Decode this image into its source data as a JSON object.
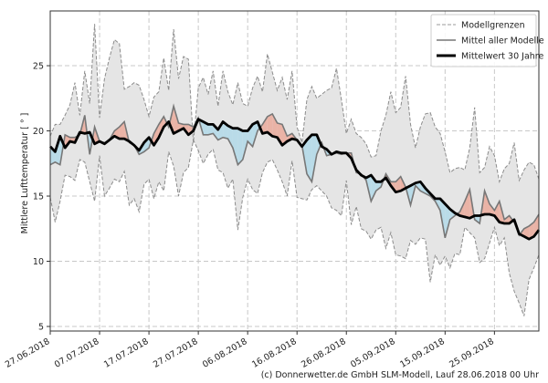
{
  "chart_data": {
    "type": "area",
    "title": "",
    "xlabel": "",
    "ylabel": "Mittlere Lufttemperatur [ ° ]",
    "ylim": [
      4.65,
      29.2
    ],
    "yticks": [
      5,
      10,
      15,
      20,
      25
    ],
    "xticks": [
      "27.06.2018",
      "07.07.2018",
      "17.07.2018",
      "27.07.2018",
      "06.08.2018",
      "16.08.2018",
      "26.08.2018",
      "05.09.2018",
      "15.09.2018",
      "25.09.2018"
    ],
    "grid": true,
    "legend_position": "top-right",
    "x": [
      "27.06.2018",
      "28.06.2018",
      "29.06.2018",
      "30.06.2018",
      "01.07.2018",
      "02.07.2018",
      "03.07.2018",
      "04.07.2018",
      "05.07.2018",
      "06.07.2018",
      "07.07.2018",
      "08.07.2018",
      "09.07.2018",
      "10.07.2018",
      "11.07.2018",
      "12.07.2018",
      "13.07.2018",
      "14.07.2018",
      "15.07.2018",
      "16.07.2018",
      "17.07.2018",
      "18.07.2018",
      "19.07.2018",
      "20.07.2018",
      "21.07.2018",
      "22.07.2018",
      "23.07.2018",
      "24.07.2018",
      "25.07.2018",
      "26.07.2018",
      "27.07.2018",
      "28.07.2018",
      "29.07.2018",
      "30.07.2018",
      "31.07.2018",
      "01.08.2018",
      "02.08.2018",
      "03.08.2018",
      "04.08.2018",
      "05.08.2018",
      "06.08.2018",
      "07.08.2018",
      "08.08.2018",
      "09.08.2018",
      "10.08.2018",
      "11.08.2018",
      "12.08.2018",
      "13.08.2018",
      "14.08.2018",
      "15.08.2018",
      "16.08.2018",
      "17.08.2018",
      "18.08.2018",
      "19.08.2018",
      "20.08.2018",
      "21.08.2018",
      "22.08.2018",
      "23.08.2018",
      "24.08.2018",
      "25.08.2018",
      "26.08.2018",
      "27.08.2018",
      "28.08.2018",
      "29.08.2018",
      "30.08.2018",
      "31.08.2018",
      "01.09.2018",
      "02.09.2018",
      "03.09.2018",
      "04.09.2018",
      "05.09.2018",
      "06.09.2018",
      "07.09.2018",
      "08.09.2018",
      "09.09.2018",
      "10.09.2018",
      "11.09.2018",
      "12.09.2018",
      "13.09.2018",
      "14.09.2018",
      "15.09.2018",
      "16.09.2018",
      "17.09.2018",
      "18.09.2018",
      "19.09.2018",
      "20.09.2018",
      "21.09.2018",
      "22.09.2018",
      "23.09.2018",
      "24.09.2018",
      "25.09.2018",
      "26.09.2018",
      "27.09.2018",
      "28.09.2018",
      "29.09.2018",
      "30.09.2018",
      "01.10.2018",
      "02.10.2018",
      "03.10.2018",
      "04.10.2018"
    ],
    "series": [
      {
        "name": "Modellgrenzen",
        "role": "upper",
        "color": "#8c8c8c",
        "style": "dashed",
        "values": [
          19.6,
          20.5,
          20.5,
          21.2,
          22.0,
          23.7,
          21.2,
          24.6,
          22.1,
          28.2,
          21.0,
          24.0,
          25.6,
          27.0,
          26.7,
          23.2,
          23.4,
          23.7,
          23.5,
          22.4,
          21.1,
          22.6,
          23.0,
          25.6,
          23.1,
          27.8,
          24.0,
          25.7,
          25.5,
          19.1,
          23.3,
          24.1,
          22.8,
          24.6,
          21.9,
          24.6,
          23.0,
          22.0,
          23.7,
          22.1,
          21.9,
          23.3,
          24.2,
          23.0,
          25.9,
          24.5,
          23.1,
          24.1,
          22.4,
          24.6,
          20.3,
          19.1,
          22.4,
          23.4,
          22.5,
          22.8,
          23.1,
          23.3,
          24.8,
          22.4,
          19.8,
          20.9,
          19.8,
          19.5,
          19.0,
          18.0,
          18.1,
          20.0,
          21.2,
          23.0,
          21.4,
          21.8,
          24.2,
          20.5,
          18.7,
          20.3,
          21.3,
          21.4,
          20.3,
          19.8,
          18.4,
          16.8,
          17.1,
          17.2,
          17.0,
          18.7,
          21.8,
          16.8,
          17.2,
          18.8,
          18.1,
          16.1,
          17.1,
          17.5,
          19.1,
          16.2,
          17.0,
          17.6,
          17.4,
          16.3
        ]
      },
      {
        "name": "Modellgrenzen",
        "role": "lower",
        "color": "#8c8c8c",
        "style": "dashed",
        "values": [
          14.9,
          13.0,
          14.6,
          16.6,
          16.5,
          16.2,
          17.8,
          17.6,
          16.1,
          14.6,
          18.1,
          15.0,
          15.6,
          16.3,
          16.1,
          16.9,
          14.3,
          14.8,
          13.8,
          15.9,
          16.3,
          14.8,
          16.1,
          15.4,
          18.4,
          17.3,
          15.0,
          16.8,
          17.2,
          19.3,
          18.5,
          17.5,
          18.2,
          18.6,
          17.0,
          16.8,
          15.6,
          16.3,
          12.4,
          14.9,
          16.3,
          15.5,
          15.2,
          16.8,
          17.6,
          17.8,
          17.0,
          16.1,
          15.0,
          17.7,
          14.9,
          14.8,
          14.7,
          15.5,
          15.8,
          15.4,
          15.0,
          14.1,
          13.9,
          13.5,
          16.2,
          12.8,
          14.2,
          12.5,
          12.3,
          11.7,
          12.4,
          12.6,
          11.0,
          12.2,
          10.5,
          10.4,
          10.2,
          11.6,
          11.3,
          11.8,
          11.7,
          8.4,
          10.5,
          9.7,
          10.4,
          9.5,
          10.6,
          10.5,
          12.6,
          12.2,
          11.8,
          9.9,
          10.2,
          11.4,
          12.6,
          11.2,
          11.8,
          9.1,
          7.7,
          6.8,
          5.8,
          8.6,
          9.5,
          10.5
        ]
      },
      {
        "name": "Mittel aller Modelle",
        "color": "#777777",
        "style": "solid",
        "values": [
          17.4,
          17.6,
          17.4,
          19.7,
          19.5,
          19.5,
          19.7,
          21.2,
          18.2,
          20.3,
          19.2,
          19.1,
          19.3,
          20.0,
          20.3,
          20.7,
          19.1,
          18.9,
          18.2,
          18.4,
          18.7,
          19.8,
          20.5,
          21.1,
          20.3,
          21.9,
          20.6,
          20.5,
          20.5,
          20.3,
          21.0,
          19.7,
          19.7,
          19.8,
          19.3,
          19.5,
          19.4,
          18.7,
          17.4,
          17.8,
          19.2,
          18.8,
          20.0,
          20.5,
          21.1,
          21.3,
          20.6,
          20.5,
          19.6,
          19.8,
          19.3,
          18.9,
          16.7,
          16.1,
          18.2,
          19.1,
          18.1,
          18.2,
          18.3,
          18.2,
          18.3,
          18.3,
          16.8,
          16.7,
          16.2,
          14.6,
          15.4,
          15.7,
          16.7,
          16.1,
          16.1,
          16.5,
          15.7,
          14.3,
          15.8,
          15.4,
          15.2,
          15.0,
          14.6,
          13.9,
          11.8,
          13.2,
          13.5,
          13.8,
          14.6,
          15.5,
          13.2,
          12.9,
          15.4,
          14.4,
          13.9,
          14.6,
          13.2,
          13.5,
          13.0,
          12.0,
          12.5,
          12.7,
          13.0,
          13.6
        ]
      },
      {
        "name": "Mittelwert 30 Jahre",
        "color": "#000000",
        "style": "solid-thick",
        "values": [
          18.8,
          18.4,
          19.6,
          18.7,
          19.2,
          19.1,
          19.9,
          19.8,
          19.9,
          19.0,
          19.2,
          19.0,
          19.3,
          19.6,
          19.4,
          19.4,
          19.2,
          18.9,
          18.5,
          19.1,
          19.5,
          18.9,
          19.5,
          20.3,
          20.7,
          19.8,
          20.0,
          20.2,
          19.7,
          20.0,
          20.9,
          20.7,
          20.5,
          20.5,
          20.1,
          20.7,
          20.4,
          20.2,
          20.2,
          20.0,
          20.0,
          20.5,
          20.7,
          19.8,
          19.9,
          19.6,
          19.5,
          18.9,
          19.2,
          19.4,
          19.3,
          18.8,
          19.3,
          19.7,
          19.7,
          18.8,
          18.6,
          18.2,
          18.4,
          18.3,
          18.3,
          17.9,
          17.0,
          16.6,
          16.4,
          16.6,
          16.1,
          16.1,
          16.4,
          15.8,
          15.3,
          15.4,
          15.6,
          15.8,
          16.0,
          16.1,
          15.6,
          15.2,
          14.8,
          14.8,
          14.4,
          14.0,
          13.7,
          13.5,
          13.4,
          13.3,
          13.5,
          13.5,
          13.6,
          13.6,
          13.5,
          13.0,
          12.9,
          12.9,
          13.2,
          12.1,
          11.9,
          11.7,
          11.9,
          12.4
        ]
      }
    ],
    "fill_colors": {
      "band": "#e5e5e5",
      "above_normal": "#eab3a6",
      "below_normal": "#b9dbe8"
    }
  },
  "legend": {
    "items": [
      {
        "label": "Modellgrenzen"
      },
      {
        "label": "Mittel aller Modelle"
      },
      {
        "label": "Mittelwert 30 Jahre"
      }
    ]
  },
  "footer": {
    "credit": "(c) Donnerwetter.de GmbH SLM-Modell, Lauf 28.06.2018 00 Uhr"
  }
}
